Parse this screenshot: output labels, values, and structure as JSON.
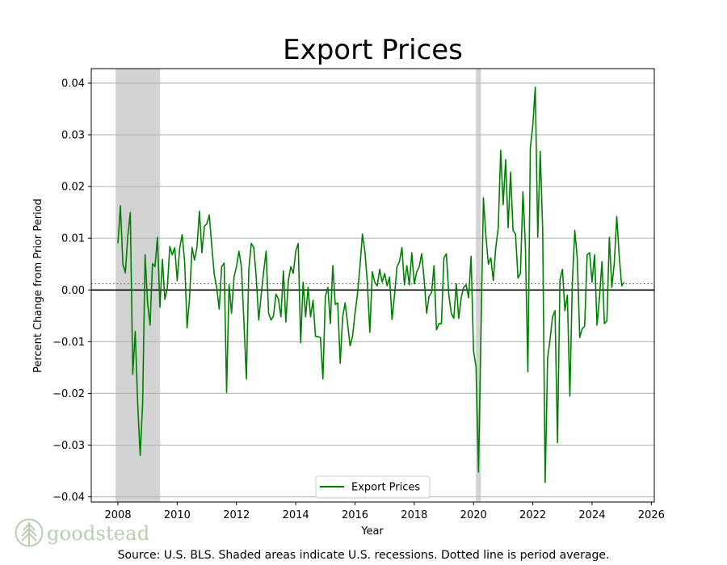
{
  "chart_data": {
    "type": "line",
    "title": "Export Prices",
    "xlabel": "Year",
    "ylabel": "Percent Change from Prior Period",
    "xlim": [
      2007.1,
      2026.1
    ],
    "ylim": [
      -0.041,
      0.0428
    ],
    "xticks": [
      2008,
      2010,
      2012,
      2014,
      2016,
      2018,
      2020,
      2022,
      2024,
      2026
    ],
    "yticks": [
      -0.04,
      -0.03,
      -0.02,
      -0.01,
      0.0,
      0.01,
      0.02,
      0.03,
      0.04
    ],
    "ytick_labels": [
      "−0.04",
      "−0.03",
      "−0.02",
      "−0.01",
      "0.00",
      "0.01",
      "0.02",
      "0.03",
      "0.04"
    ],
    "recessions": [
      [
        2007.92,
        2009.42
      ],
      [
        2020.08,
        2020.25
      ]
    ],
    "period_average": 0.0012,
    "legend_location": "lower center",
    "series": [
      {
        "name": "Export Prices",
        "color": "#008000",
        "start": 2008.0,
        "step": 0.0833333,
        "values": [
          0.009,
          0.0163,
          0.005,
          0.0033,
          0.0105,
          0.015,
          -0.0163,
          -0.008,
          -0.022,
          -0.032,
          -0.022,
          0.0068,
          -0.0025,
          -0.0068,
          0.0051,
          0.0045,
          0.0102,
          -0.0033,
          0.0059,
          -0.0018,
          0.0004,
          0.0084,
          0.0068,
          0.0082,
          0.0018,
          0.0081,
          0.0107,
          0.0055,
          -0.0073,
          -0.0015,
          0.0082,
          0.0058,
          0.0083,
          0.0152,
          0.0072,
          0.0123,
          0.0128,
          0.0145,
          0.0085,
          0.003,
          0.0005,
          -0.0037,
          0.0045,
          0.0052,
          -0.0198,
          0.001,
          -0.0045,
          0.0025,
          0.0045,
          0.0075,
          0.0045,
          -0.006,
          -0.0172,
          0.004,
          0.009,
          0.0082,
          0.0025,
          -0.0058,
          -0.001,
          0.0035,
          0.0075,
          -0.0045,
          -0.0058,
          -0.005,
          -0.0008,
          -0.0018,
          -0.0052,
          0.0037,
          -0.0062,
          0.0018,
          0.0045,
          0.0032,
          0.0075,
          0.009,
          -0.0102,
          0.0015,
          -0.0052,
          0.0005,
          -0.0052,
          -0.002,
          -0.009,
          -0.009,
          -0.0092,
          -0.0172,
          -0.0012,
          0.0005,
          -0.0065,
          0.0047,
          -0.0028,
          -0.0025,
          -0.0142,
          -0.0052,
          -0.0025,
          -0.0065,
          -0.0108,
          -0.009,
          -0.0045,
          -0.0008,
          0.0045,
          0.0108,
          0.0075,
          0.0015,
          -0.0082,
          0.0035,
          0.0015,
          0.0008,
          0.004,
          0.0015,
          0.0032,
          0.0008,
          0.0025,
          -0.0057,
          -0.001,
          0.0045,
          0.0055,
          0.0082,
          0.001,
          0.0047,
          0.001,
          0.0072,
          0.0012,
          0.0035,
          0.0045,
          0.007,
          0.002,
          -0.0045,
          -0.0012,
          -0.0005,
          0.0047,
          -0.0077,
          -0.0065,
          -0.0065,
          0.0062,
          0.007,
          -0.001,
          -0.0045,
          -0.0055,
          0.0012,
          -0.0055,
          -0.0015,
          0.0005,
          0.001,
          -0.0015,
          0.0065,
          -0.0118,
          -0.0148,
          -0.0352,
          -0.0088,
          0.0178,
          0.0105,
          0.005,
          0.0062,
          0.0018,
          0.0082,
          0.012,
          0.027,
          0.0165,
          0.0252,
          0.012,
          0.0228,
          0.0115,
          0.0108,
          0.0023,
          0.0032,
          0.019,
          0.0085,
          -0.0158,
          0.0275,
          0.0318,
          0.0392,
          0.0102,
          0.0268,
          0.0118,
          -0.0372,
          -0.0132,
          -0.0095,
          -0.0052,
          -0.004,
          -0.0295,
          0.002,
          0.004,
          -0.004,
          -0.001,
          -0.0205,
          0.0012,
          0.0115,
          0.0062,
          -0.0092,
          -0.0075,
          -0.007,
          0.0068,
          0.0072,
          0.0015,
          0.0068,
          -0.0068,
          -0.0015,
          0.0055,
          -0.0065,
          -0.006,
          0.0102,
          0.0005,
          0.0052,
          0.0142,
          0.0065,
          0.0008,
          0.0015
        ]
      }
    ]
  },
  "source_note": "Source: U.S. BLS. Shaded areas indicate U.S. recessions. Dotted line is period average.",
  "logo": {
    "text": "goodstead",
    "color": "#b7cfad"
  }
}
